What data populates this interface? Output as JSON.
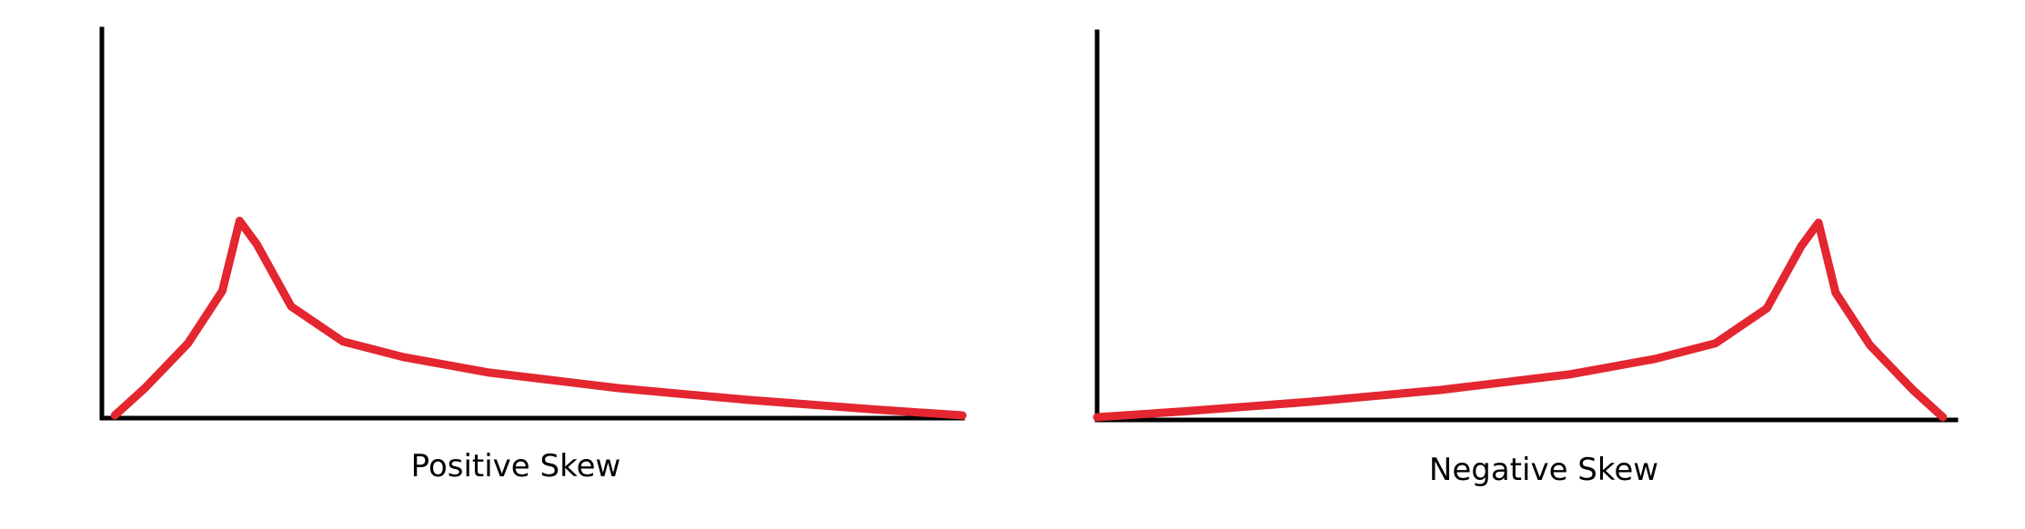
{
  "chart_data": [
    {
      "type": "line",
      "title": "Positive Skew",
      "xlabel": "",
      "ylabel": "",
      "grid": false,
      "color": "#e3262f",
      "xlim": [
        0,
        100
      ],
      "ylim": [
        0,
        100
      ],
      "series": [
        {
          "x": [
            1.5,
            5,
            10,
            14,
            16,
            18,
            22,
            28,
            35,
            45,
            60,
            75,
            90,
            100
          ],
          "values": [
            0,
            14,
            37,
            64,
            100,
            88,
            56,
            38,
            30,
            22,
            14,
            8,
            3,
            0
          ]
        }
      ]
    },
    {
      "type": "line",
      "title": "Negative Skew",
      "xlabel": "",
      "ylabel": "",
      "grid": false,
      "color": "#e3262f",
      "xlim": [
        0,
        100
      ],
      "ylim": [
        0,
        100
      ],
      "series": [
        {
          "x": [
            0,
            10,
            25,
            40,
            55,
            65,
            72,
            78,
            82,
            84,
            86,
            90,
            95,
            98.5
          ],
          "values": [
            0,
            3,
            8,
            14,
            22,
            30,
            38,
            56,
            88,
            100,
            64,
            37,
            14,
            0
          ]
        }
      ]
    }
  ]
}
